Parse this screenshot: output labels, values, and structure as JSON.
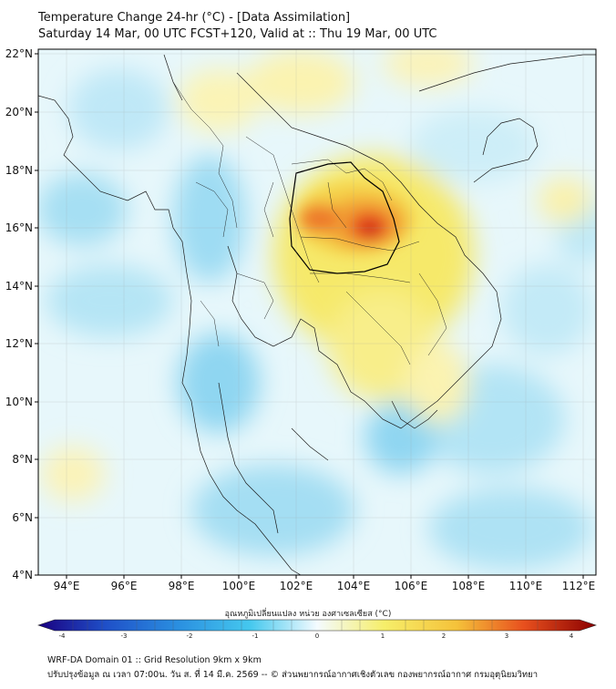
{
  "header": {
    "title": "Temperature Change 24-hr (°C) - [Data Assimilation]",
    "subtitle": "Saturday 14 Mar, 00 UTC FCST+120, Valid at :: Thu 19 Mar, 00 UTC"
  },
  "map": {
    "lat_labels": [
      "22°N",
      "20°N",
      "18°N",
      "16°N",
      "14°N",
      "12°N",
      "10°N",
      "8°N",
      "6°N",
      "4°N"
    ],
    "lon_labels": [
      "94°E",
      "96°E",
      "98°E",
      "100°E",
      "102°E",
      "104°E",
      "106°E",
      "108°E",
      "110°E",
      "112°E"
    ],
    "hotspot_value_c": 3.2
  },
  "colorbar": {
    "label": "อุณหภูมิเปลี่ยนแปลง หน่วย องศาเซลเซียส (°C)",
    "ticks": [
      "-4",
      "-3",
      "-2",
      "-1",
      "0",
      "1",
      "2",
      "3",
      "4"
    ],
    "colors": {
      "cold_extreme": "#1a0080",
      "cold": "#2a6fd6",
      "cool": "#45c8ee",
      "neutral": "#f4fbff",
      "warm": "#f6ee6a",
      "hot": "#f19a2c",
      "hot_extreme": "#8b0000"
    }
  },
  "footer": {
    "line1": "WRF-DA Domain 01 :: Grid Resolution 9km x 9km",
    "line2": "ปรับปรุงข้อมูล ณ เวลา 07:00น. วัน ส. ที่ 14 มี.ค. 2569 -- © ส่วนพยากรณ์อากาศเชิงตัวเลข กองพยากรณ์อากาศ กรมอุตุนิยมวิทยา"
  }
}
